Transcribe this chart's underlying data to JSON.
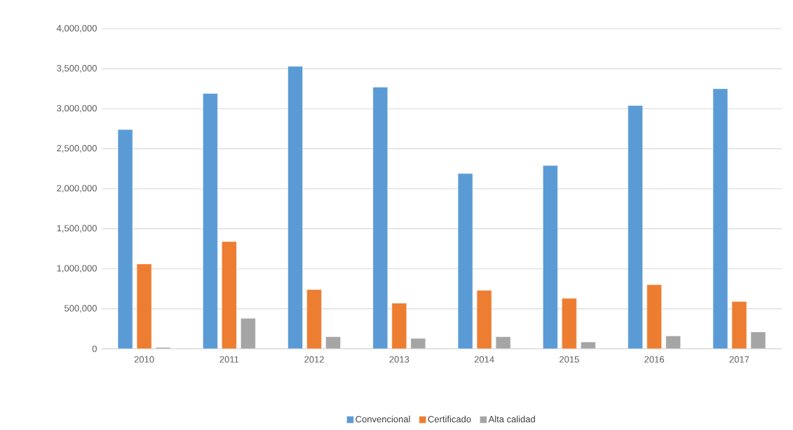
{
  "chart_data": {
    "type": "bar",
    "categories": [
      "2010",
      "2011",
      "2012",
      "2013",
      "2014",
      "2015",
      "2016",
      "2017"
    ],
    "series": [
      {
        "name": "Convencional",
        "color": "#5b9bd5",
        "values": [
          2740000,
          3190000,
          3530000,
          3270000,
          2190000,
          2290000,
          3040000,
          3250000
        ]
      },
      {
        "name": "Certificado",
        "color": "#ed7d31",
        "values": [
          1060000,
          1340000,
          740000,
          570000,
          730000,
          630000,
          800000,
          590000
        ]
      },
      {
        "name": "Alta calidad",
        "color": "#a5a5a5",
        "values": [
          17000,
          380000,
          150000,
          130000,
          150000,
          85000,
          160000,
          210000
        ]
      }
    ],
    "ylim": [
      0,
      4000000
    ],
    "yticks": [
      {
        "value": 0,
        "label": "0"
      },
      {
        "value": 500000,
        "label": "500,000"
      },
      {
        "value": 1000000,
        "label": "1,000,000"
      },
      {
        "value": 1500000,
        "label": "1,500,000"
      },
      {
        "value": 2000000,
        "label": "2,000,000"
      },
      {
        "value": 2500000,
        "label": "2,500,000"
      },
      {
        "value": 3000000,
        "label": "3,000,000"
      },
      {
        "value": 3500000,
        "label": "3,500,000"
      },
      {
        "value": 4000000,
        "label": "4,000,000"
      }
    ],
    "grid": "y",
    "legend": "bottom"
  }
}
